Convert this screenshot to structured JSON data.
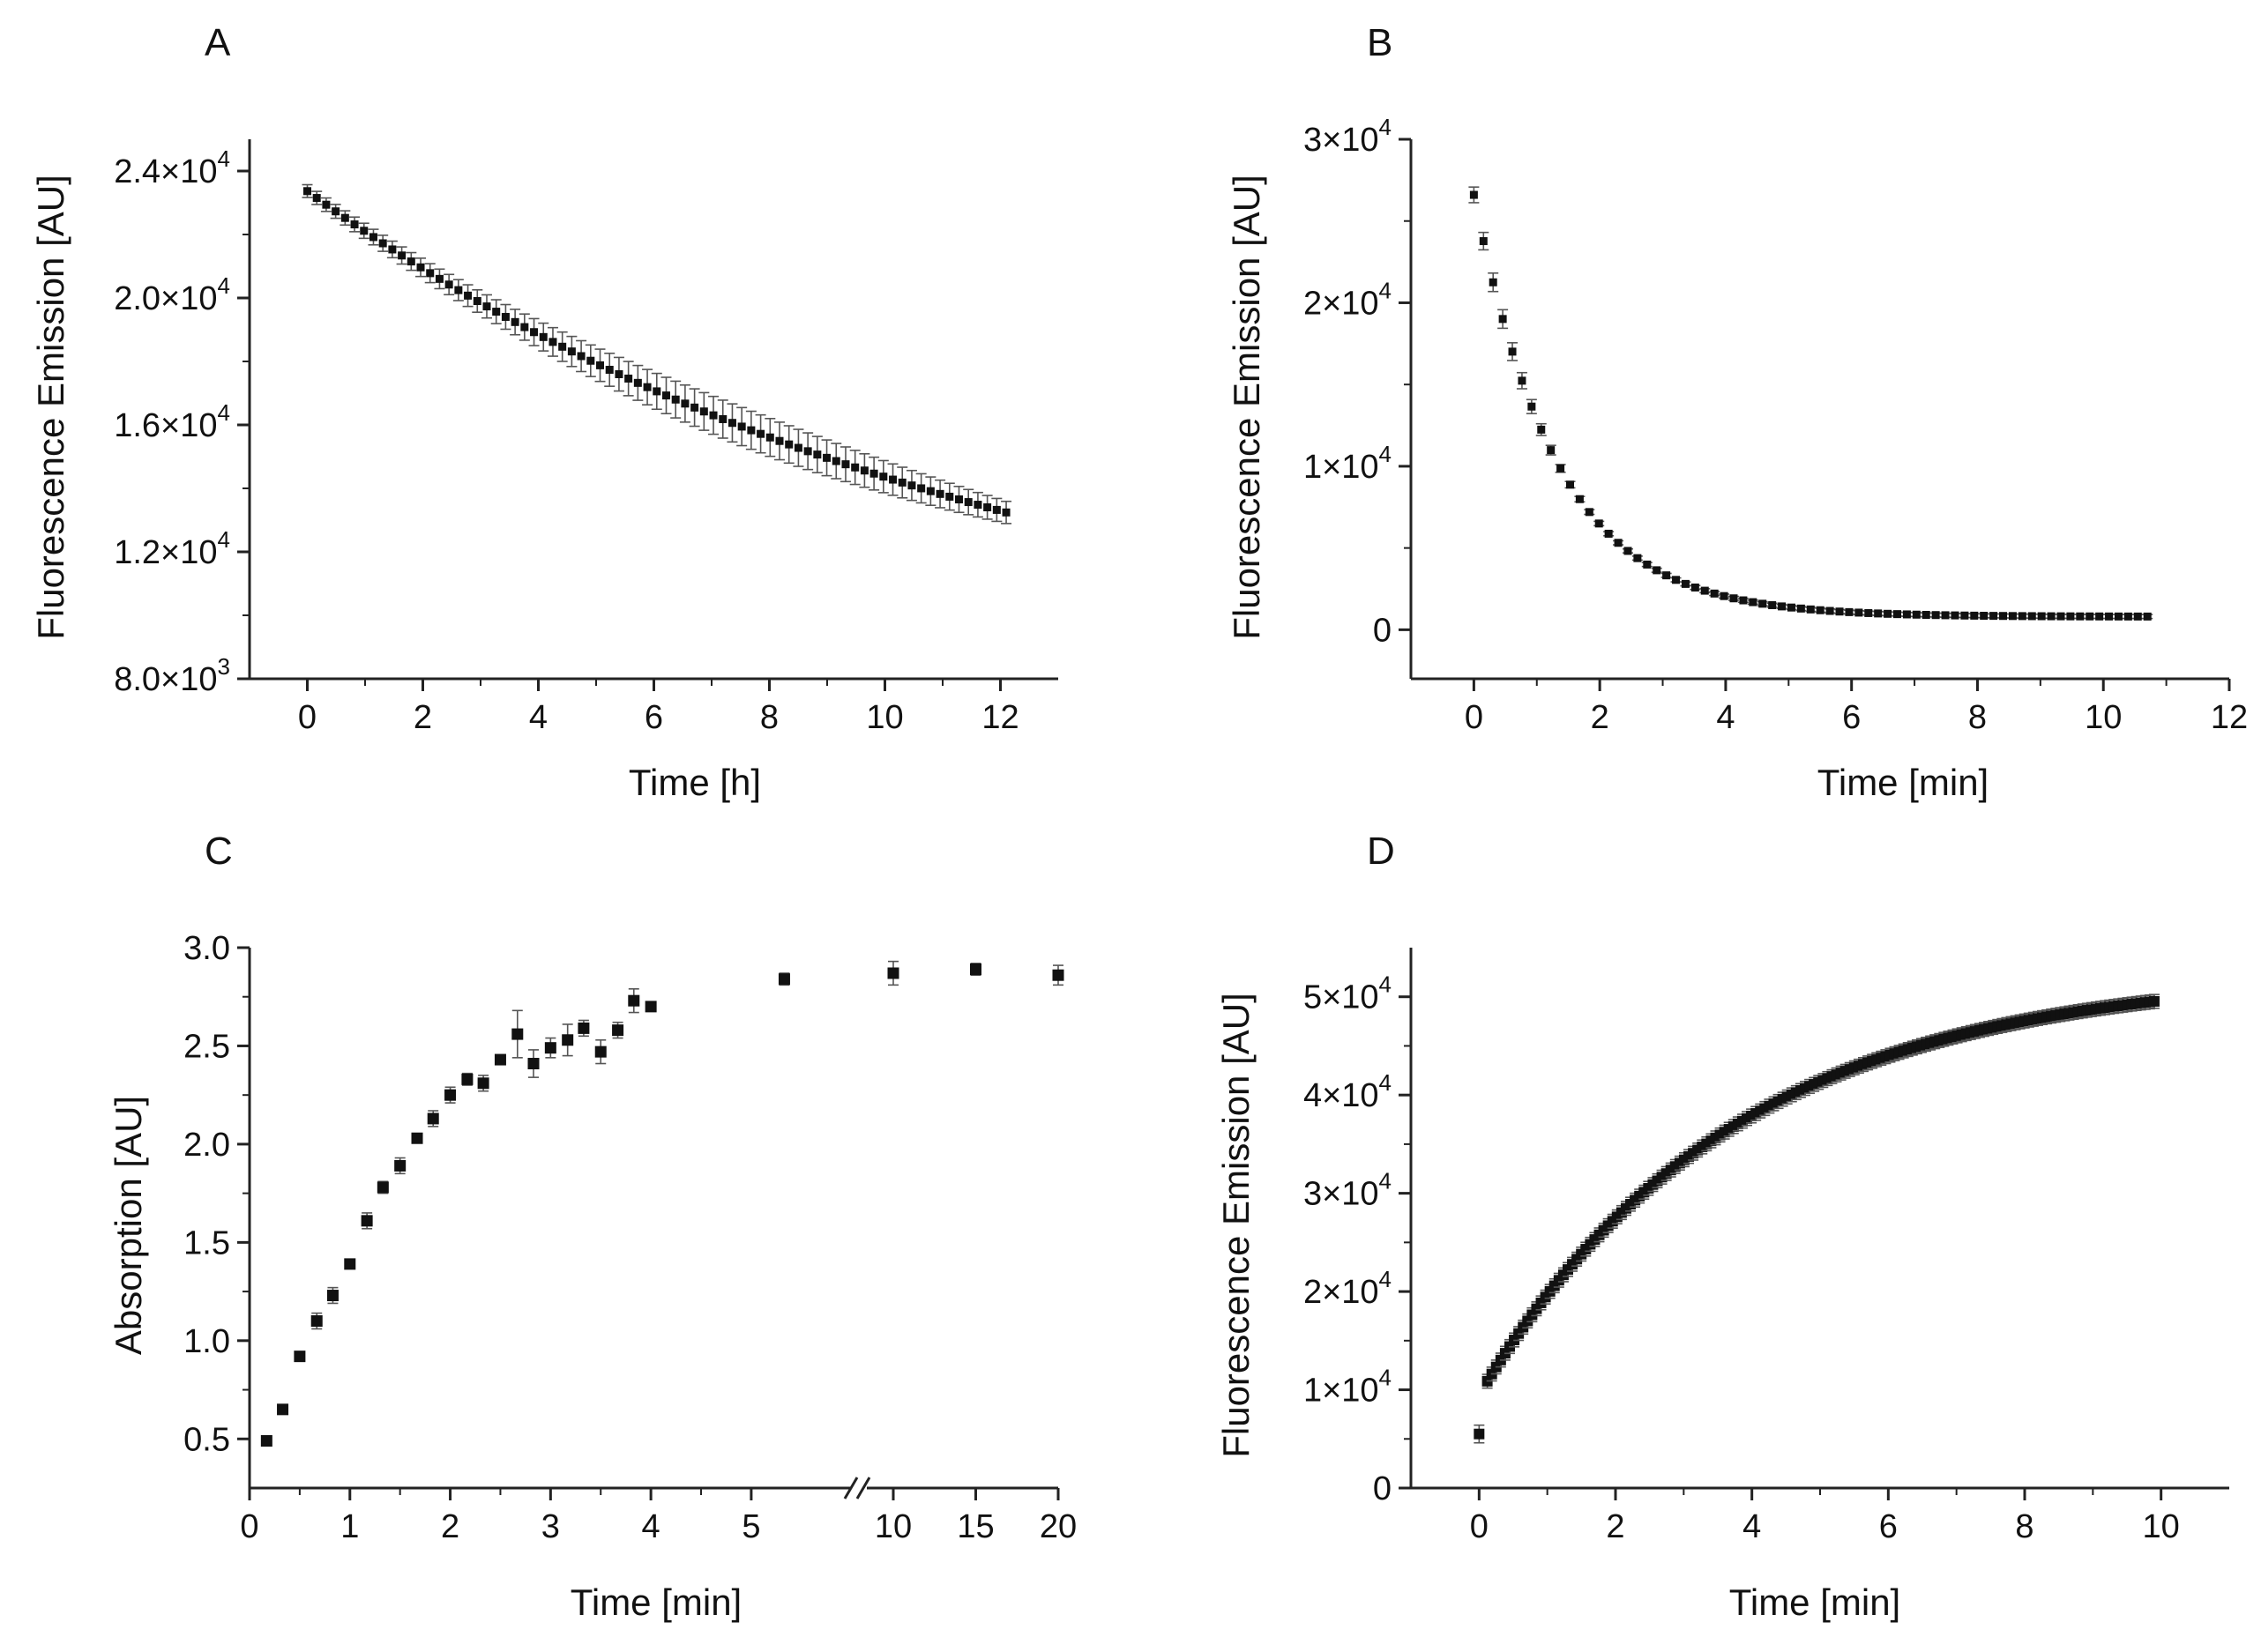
{
  "colors": {
    "marker": "#111111",
    "axis": "#222222",
    "error_bar": "#555555",
    "background": "#ffffff"
  },
  "chart_data": [
    {
      "id": "A",
      "type": "scatter",
      "panel_label": "A",
      "xlabel": "Time [h]",
      "ylabel": "Fluorescence Emission [AU]",
      "xlim": [
        -1,
        13
      ],
      "ylim": [
        8000,
        25000
      ],
      "x_ticks": [
        0,
        2,
        4,
        6,
        8,
        10,
        12
      ],
      "x_tick_labels": [
        "0",
        "2",
        "4",
        "6",
        "8",
        "10",
        "12"
      ],
      "y_ticks": [
        8000,
        12000,
        16000,
        20000,
        24000
      ],
      "y_tick_labels": [
        {
          "mant": "8.0",
          "exp": "3"
        },
        {
          "mant": "1.2",
          "exp": "4"
        },
        {
          "mant": "1.6",
          "exp": "4"
        },
        {
          "mant": "2.0",
          "exp": "4"
        },
        {
          "mant": "2.4",
          "exp": "4"
        }
      ],
      "y_minor_ticks": [
        10000,
        14000,
        18000,
        22000
      ],
      "generator": {
        "kind": "decay",
        "x_start": 0,
        "x_end": 12.1,
        "n": 75,
        "a": 15967,
        "k": 0.0831,
        "c": 7400,
        "err_base": 150,
        "err_mid": 450,
        "err_center": 7.5
      },
      "grid": false
    },
    {
      "id": "B",
      "type": "scatter",
      "panel_label": "B",
      "xlabel": "Time [min]",
      "ylabel": "Fluorescence Emission [AU]",
      "xlim": [
        -1,
        12
      ],
      "ylim": [
        -3000,
        30000
      ],
      "x_ticks": [
        0,
        2,
        4,
        6,
        8,
        10,
        12
      ],
      "x_tick_labels": [
        "0",
        "2",
        "4",
        "6",
        "8",
        "10",
        "12"
      ],
      "y_ticks": [
        0,
        10000,
        20000,
        30000
      ],
      "y_tick_labels": [
        {
          "mant": "0",
          "exp": ""
        },
        {
          "mant": "1×10",
          "exp": "4"
        },
        {
          "mant": "2×10",
          "exp": "4"
        },
        {
          "mant": "3×10",
          "exp": "4"
        }
      ],
      "y_minor_ticks": [
        5000,
        15000,
        25000
      ],
      "generator": {
        "kind": "decay",
        "x_start": 0,
        "x_end": 10.7,
        "n": 71,
        "a": 25800,
        "k": 0.76,
        "c": 800,
        "err_base": 120,
        "err_mid": 450,
        "err_center": 0.4
      },
      "grid": false
    },
    {
      "id": "C",
      "type": "scatter",
      "panel_label": "C",
      "xlabel": "Time [min]",
      "ylabel": "Absorption [AU]",
      "axis_break": true,
      "ylim": [
        0.25,
        3.0
      ],
      "x_ticks": [
        0,
        1,
        2,
        3,
        4,
        5,
        10,
        15,
        20
      ],
      "x_tick_labels": [
        "0",
        "1",
        "2",
        "3",
        "4",
        "5",
        "10",
        "15",
        "20"
      ],
      "y_ticks": [
        0.5,
        1.0,
        1.5,
        2.0,
        2.5,
        3.0
      ],
      "y_tick_labels": [
        "0.5",
        "1.0",
        "1.5",
        "2.0",
        "2.5",
        "3.0"
      ],
      "points": [
        {
          "x": 0.17,
          "y": 0.49,
          "err": 0.02
        },
        {
          "x": 0.33,
          "y": 0.65,
          "err": 0.02
        },
        {
          "x": 0.5,
          "y": 0.92,
          "err": 0.02
        },
        {
          "x": 0.67,
          "y": 1.1,
          "err": 0.04
        },
        {
          "x": 0.83,
          "y": 1.23,
          "err": 0.04
        },
        {
          "x": 1.0,
          "y": 1.39,
          "err": 0.02
        },
        {
          "x": 1.17,
          "y": 1.61,
          "err": 0.04
        },
        {
          "x": 1.33,
          "y": 1.78,
          "err": 0.03
        },
        {
          "x": 1.5,
          "y": 1.89,
          "err": 0.04
        },
        {
          "x": 1.67,
          "y": 2.03,
          "err": 0.02
        },
        {
          "x": 1.83,
          "y": 2.13,
          "err": 0.04
        },
        {
          "x": 2.0,
          "y": 2.25,
          "err": 0.04
        },
        {
          "x": 2.17,
          "y": 2.33,
          "err": 0.03
        },
        {
          "x": 2.33,
          "y": 2.31,
          "err": 0.04
        },
        {
          "x": 2.5,
          "y": 2.43,
          "err": 0.02
        },
        {
          "x": 2.67,
          "y": 2.56,
          "err": 0.12
        },
        {
          "x": 2.83,
          "y": 2.41,
          "err": 0.07
        },
        {
          "x": 3.0,
          "y": 2.49,
          "err": 0.05
        },
        {
          "x": 3.17,
          "y": 2.53,
          "err": 0.08
        },
        {
          "x": 3.33,
          "y": 2.59,
          "err": 0.04
        },
        {
          "x": 3.5,
          "y": 2.47,
          "err": 0.06
        },
        {
          "x": 3.67,
          "y": 2.58,
          "err": 0.04
        },
        {
          "x": 3.83,
          "y": 2.73,
          "err": 0.06
        },
        {
          "x": 4.0,
          "y": 2.7,
          "err": 0.02
        },
        {
          "x": 5.33,
          "y": 2.84,
          "err": 0.03
        },
        {
          "x": 10,
          "y": 2.87,
          "err": 0.06
        },
        {
          "x": 15,
          "y": 2.89,
          "err": 0.03
        },
        {
          "x": 20,
          "y": 2.86,
          "err": 0.05
        }
      ],
      "grid": false
    },
    {
      "id": "D",
      "type": "scatter",
      "panel_label": "D",
      "xlabel": "Time [min]",
      "ylabel": "Fluorescence Emission [AU]",
      "xlim": [
        -1,
        11
      ],
      "ylim": [
        0,
        55000
      ],
      "x_ticks": [
        0,
        2,
        4,
        6,
        8,
        10
      ],
      "x_tick_labels": [
        "0",
        "2",
        "4",
        "6",
        "8",
        "10"
      ],
      "y_ticks": [
        0,
        10000,
        20000,
        30000,
        40000,
        50000
      ],
      "y_tick_labels": [
        {
          "mant": "0",
          "exp": ""
        },
        {
          "mant": "1×10",
          "exp": "4"
        },
        {
          "mant": "2×10",
          "exp": "4"
        },
        {
          "mant": "3×10",
          "exp": "4"
        },
        {
          "mant": "4×10",
          "exp": "4"
        },
        {
          "mant": "5×10",
          "exp": "4"
        }
      ],
      "y_minor_ticks": [
        5000,
        15000,
        25000,
        35000,
        45000
      ],
      "generator": {
        "kind": "rise",
        "x_start": 0.12,
        "x_end": 9.9,
        "n": 150,
        "a": 52500,
        "b": 43000,
        "k": 0.27,
        "err_base": 700,
        "first_point": {
          "x": 0.0,
          "y": 5500,
          "err": 900
        }
      },
      "grid": false
    }
  ]
}
